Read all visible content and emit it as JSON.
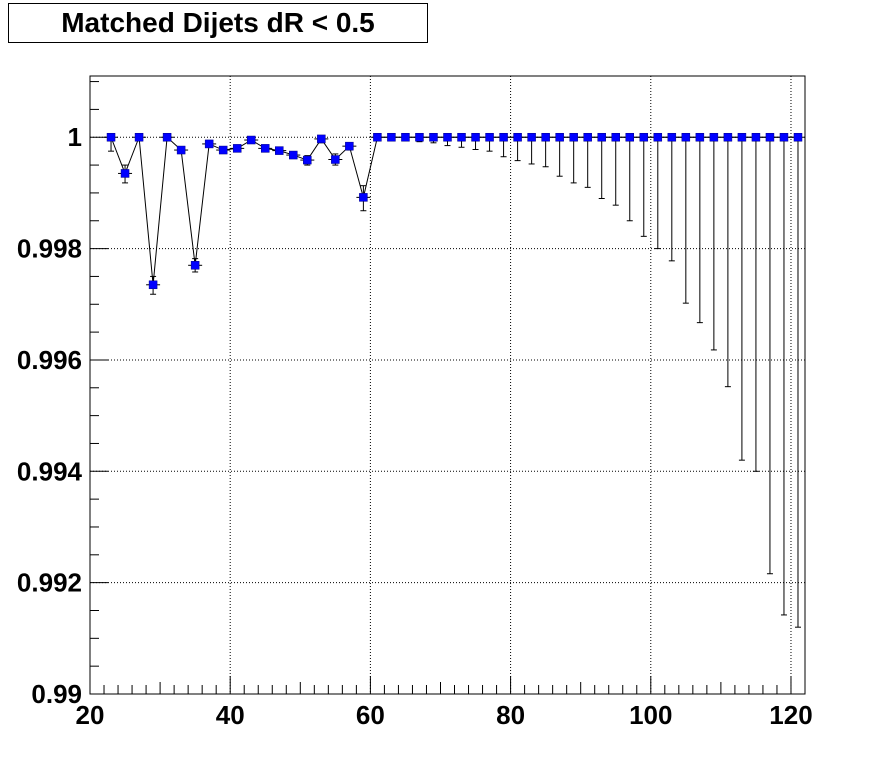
{
  "chart_data": {
    "type": "scatter",
    "title": "Matched Dijets dR < 0.5",
    "xlabel": "",
    "ylabel": "",
    "xlim": [
      20,
      122
    ],
    "ylim": [
      0.99,
      1.0011
    ],
    "grid": true,
    "marker_color": "#0000ff",
    "x_ticks": [
      20,
      40,
      60,
      80,
      100,
      120
    ],
    "y_ticks": [
      0.99,
      0.992,
      0.994,
      0.996,
      0.998,
      1
    ],
    "y_tick_labels": [
      "0.99",
      "0.992",
      "0.994",
      "0.996",
      "0.998",
      "1"
    ],
    "x_tick_labels": [
      "20",
      "40",
      "60",
      "80",
      "100",
      "120"
    ],
    "points": [
      {
        "x": 23,
        "y": 1.0,
        "lo": 0.99975,
        "hi": 1.0
      },
      {
        "x": 25,
        "y": 0.99935,
        "lo": 0.99918,
        "hi": 0.9995
      },
      {
        "x": 27,
        "y": 1.0,
        "lo": 0.99997,
        "hi": 1.0
      },
      {
        "x": 29,
        "y": 0.99735,
        "lo": 0.99718,
        "hi": 0.9975
      },
      {
        "x": 31,
        "y": 1.0,
        "lo": 0.99997,
        "hi": 1.0
      },
      {
        "x": 33,
        "y": 0.99977,
        "lo": 0.99972,
        "hi": 0.99982
      },
      {
        "x": 35,
        "y": 0.9977,
        "lo": 0.99758,
        "hi": 0.99782
      },
      {
        "x": 37,
        "y": 0.99988,
        "lo": 0.99983,
        "hi": 0.99993
      },
      {
        "x": 39,
        "y": 0.99977,
        "lo": 0.99972,
        "hi": 0.99982
      },
      {
        "x": 41,
        "y": 0.9998,
        "lo": 0.99975,
        "hi": 0.99985
      },
      {
        "x": 43,
        "y": 0.99995,
        "lo": 0.9999,
        "hi": 1.0
      },
      {
        "x": 45,
        "y": 0.9998,
        "lo": 0.99975,
        "hi": 0.99985
      },
      {
        "x": 47,
        "y": 0.99976,
        "lo": 0.99971,
        "hi": 0.99981
      },
      {
        "x": 49,
        "y": 0.99968,
        "lo": 0.99962,
        "hi": 0.99974
      },
      {
        "x": 51,
        "y": 0.99959,
        "lo": 0.9995,
        "hi": 0.99967
      },
      {
        "x": 53,
        "y": 0.99997,
        "lo": 0.9999,
        "hi": 1.0
      },
      {
        "x": 55,
        "y": 0.9996,
        "lo": 0.9995,
        "hi": 0.9997
      },
      {
        "x": 57,
        "y": 0.99984,
        "lo": 0.99977,
        "hi": 0.9999
      },
      {
        "x": 59,
        "y": 0.99892,
        "lo": 0.99868,
        "hi": 0.99913
      },
      {
        "x": 61,
        "y": 1.0,
        "lo": 0.99998,
        "hi": 1.0
      },
      {
        "x": 63,
        "y": 1.0,
        "lo": 0.99996,
        "hi": 1.0
      },
      {
        "x": 65,
        "y": 1.0,
        "lo": 0.99994,
        "hi": 1.0
      },
      {
        "x": 67,
        "y": 1.0,
        "lo": 0.99992,
        "hi": 1.0
      },
      {
        "x": 69,
        "y": 1.0,
        "lo": 0.9999,
        "hi": 1.0
      },
      {
        "x": 71,
        "y": 1.0,
        "lo": 0.99985,
        "hi": 1.0
      },
      {
        "x": 73,
        "y": 1.0,
        "lo": 0.99982,
        "hi": 1.0
      },
      {
        "x": 75,
        "y": 1.0,
        "lo": 0.99978,
        "hi": 1.0
      },
      {
        "x": 77,
        "y": 1.0,
        "lo": 0.99975,
        "hi": 1.0
      },
      {
        "x": 79,
        "y": 1.0,
        "lo": 0.99965,
        "hi": 1.0
      },
      {
        "x": 81,
        "y": 1.0,
        "lo": 0.99958,
        "hi": 1.0
      },
      {
        "x": 83,
        "y": 1.0,
        "lo": 0.99952,
        "hi": 1.0
      },
      {
        "x": 85,
        "y": 1.0,
        "lo": 0.99947,
        "hi": 1.0
      },
      {
        "x": 87,
        "y": 1.0,
        "lo": 0.9993,
        "hi": 1.0
      },
      {
        "x": 89,
        "y": 1.0,
        "lo": 0.99918,
        "hi": 1.0
      },
      {
        "x": 91,
        "y": 1.0,
        "lo": 0.9991,
        "hi": 1.0
      },
      {
        "x": 93,
        "y": 1.0,
        "lo": 0.9989,
        "hi": 1.0
      },
      {
        "x": 95,
        "y": 1.0,
        "lo": 0.99878,
        "hi": 1.0
      },
      {
        "x": 97,
        "y": 1.0,
        "lo": 0.9985,
        "hi": 1.0
      },
      {
        "x": 99,
        "y": 1.0,
        "lo": 0.99822,
        "hi": 1.0
      },
      {
        "x": 101,
        "y": 1.0,
        "lo": 0.998,
        "hi": 1.0
      },
      {
        "x": 103,
        "y": 1.0,
        "lo": 0.99778,
        "hi": 1.0
      },
      {
        "x": 105,
        "y": 1.0,
        "lo": 0.99702,
        "hi": 1.0
      },
      {
        "x": 107,
        "y": 1.0,
        "lo": 0.99667,
        "hi": 1.0
      },
      {
        "x": 109,
        "y": 1.0,
        "lo": 0.99618,
        "hi": 1.0
      },
      {
        "x": 111,
        "y": 1.0,
        "lo": 0.99552,
        "hi": 1.0
      },
      {
        "x": 113,
        "y": 1.0,
        "lo": 0.9942,
        "hi": 1.0
      },
      {
        "x": 115,
        "y": 1.0,
        "lo": 0.994,
        "hi": 1.0
      },
      {
        "x": 117,
        "y": 1.0,
        "lo": 0.99216,
        "hi": 1.0
      },
      {
        "x": 119,
        "y": 1.0,
        "lo": 0.99142,
        "hi": 1.0
      },
      {
        "x": 121,
        "y": 1.0,
        "lo": 0.9912,
        "hi": 1.0
      }
    ]
  }
}
